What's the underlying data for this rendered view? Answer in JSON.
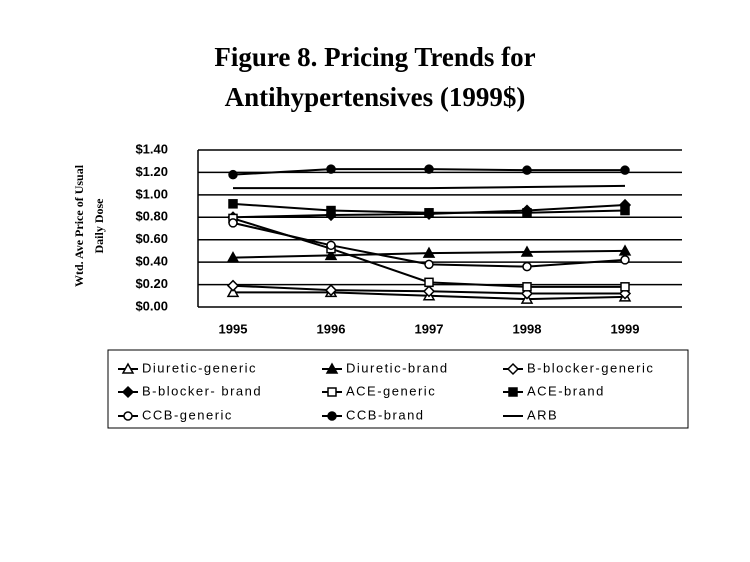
{
  "chart_data": {
    "type": "line",
    "title": [
      "Figure 8. Pricing Trends for",
      "Antihypertensives (1999$)"
    ],
    "y_label": [
      "Wtd. Ave Price of Usual",
      "Daily Dose"
    ],
    "categories": [
      "1995",
      "1996",
      "1997",
      "1998",
      "1999"
    ],
    "ylim": [
      0,
      1.4
    ],
    "yticks": [
      {
        "value": 0,
        "label": "$0.00"
      },
      {
        "value": 0.2,
        "label": "$0.20"
      },
      {
        "value": 0.4,
        "label": "$0.40"
      },
      {
        "value": 0.6,
        "label": "$0.60"
      },
      {
        "value": 0.8,
        "label": "$0.80"
      },
      {
        "value": 1.0,
        "label": "$1.00"
      },
      {
        "value": 1.2,
        "label": "$1.20"
      },
      {
        "value": 1.4,
        "label": "$1.40"
      }
    ],
    "grid": true,
    "series": [
      {
        "name": "Diuretic-generic",
        "color": "#000000",
        "marker": "triangle-open",
        "values": [
          0.13,
          0.13,
          0.1,
          0.07,
          0.09
        ]
      },
      {
        "name": "Diuretic-brand",
        "color": "#000000",
        "marker": "triangle-filled",
        "values": [
          0.44,
          0.46,
          0.48,
          0.49,
          0.5
        ]
      },
      {
        "name": "B-blocker-generic",
        "color": "#000000",
        "marker": "diamond-open",
        "values": [
          0.19,
          0.15,
          0.14,
          0.12,
          0.12
        ]
      },
      {
        "name": "B-blocker- brand",
        "color": "#000000",
        "marker": "diamond-filled",
        "values": [
          0.8,
          0.82,
          0.83,
          0.86,
          0.91
        ]
      },
      {
        "name": "ACE-generic",
        "color": "#000000",
        "marker": "square-open",
        "values": [
          0.79,
          0.52,
          0.22,
          0.18,
          0.18
        ]
      },
      {
        "name": "ACE-brand",
        "color": "#000000",
        "marker": "square-filled",
        "values": [
          0.92,
          0.86,
          0.84,
          0.84,
          0.86
        ]
      },
      {
        "name": "CCB-generic",
        "color": "#000000",
        "marker": "circle-open",
        "values": [
          0.75,
          0.55,
          0.38,
          0.36,
          0.42
        ]
      },
      {
        "name": "CCB-brand",
        "color": "#000000",
        "marker": "circle-filled",
        "values": [
          1.18,
          1.23,
          1.23,
          1.22,
          1.22
        ]
      },
      {
        "name": "ARB",
        "color": "#000000",
        "marker": "none",
        "values": [
          1.06,
          1.06,
          1.06,
          1.07,
          1.08
        ]
      }
    ]
  }
}
